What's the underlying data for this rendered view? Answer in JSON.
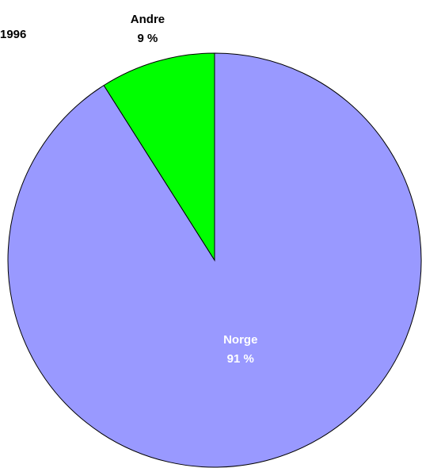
{
  "chart_data": {
    "type": "pie",
    "title": "1996",
    "categories": [
      "Norge",
      "Andre"
    ],
    "values": [
      91,
      9
    ],
    "value_labels": [
      "91 %",
      "9 %"
    ],
    "colors": [
      "#9999ff",
      "#00ff00"
    ]
  }
}
